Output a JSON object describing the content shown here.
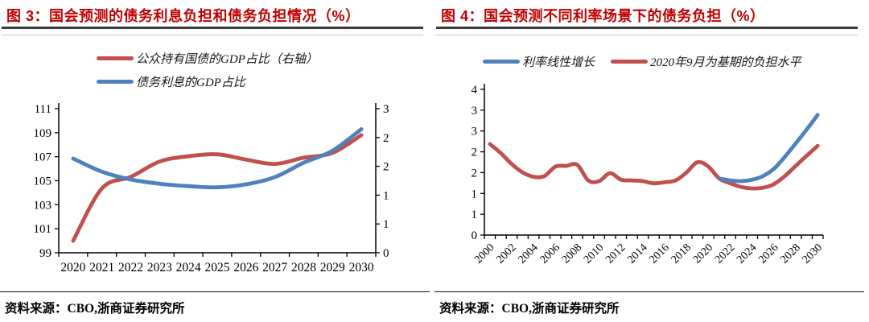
{
  "chart_data": [
    {
      "type": "line",
      "title": "图 3：国会预测的债务利息负担和债务负担情况（%）",
      "source": "资料来源：CBO,浙商证券研究所",
      "categories": [
        "2020",
        "2021",
        "2022",
        "2023",
        "2024",
        "2025",
        "2026",
        "2027",
        "2028",
        "2029",
        "2030"
      ],
      "left_axis": {
        "min": 99,
        "max": 111,
        "tick_labels": [
          "111",
          "109",
          "107",
          "105",
          "103",
          "101",
          "99"
        ]
      },
      "right_axis": {
        "min": 0,
        "max": 3,
        "tick_labels": [
          "3",
          "2",
          "2",
          "1",
          "1",
          "0"
        ]
      },
      "legend_position": "top-left-stacked",
      "grid": false,
      "series": [
        {
          "name": "公众持有国债的GDP占比（右轴）",
          "color": "#c0504d",
          "axis": "right",
          "z": 1,
          "values": [
            0.25,
            1.34,
            1.58,
            1.9,
            2.01,
            2.05,
            1.94,
            1.85,
            1.98,
            2.08,
            2.45
          ]
        },
        {
          "name": "债务利息的GDP占比",
          "color": "#4f81bd",
          "axis": "left",
          "z": 2,
          "values": [
            106.85,
            105.75,
            105.1,
            104.75,
            104.55,
            104.45,
            104.7,
            105.3,
            106.5,
            107.5,
            109.3
          ]
        }
      ]
    },
    {
      "type": "line",
      "title": "图 4：国会预测不同利率场景下的债务负担（%）",
      "source": "资料来源：CBO,浙商证券研究所",
      "categories": [
        "2000",
        "2001",
        "2002",
        "2003",
        "2004",
        "2005",
        "2006",
        "2007",
        "2008",
        "2009",
        "2010",
        "2011",
        "2012",
        "2013",
        "2014",
        "2015",
        "2016",
        "2017",
        "2018",
        "2019",
        "2020",
        "2021",
        "2022",
        "2023",
        "2024",
        "2025",
        "2026",
        "2027",
        "2028",
        "2029",
        "2030"
      ],
      "left_axis": {
        "min": 0,
        "max": 4,
        "tick_labels": [
          "4",
          "3",
          "3",
          "2",
          "2",
          "1",
          "1",
          "0"
        ]
      },
      "x_label_step": 2,
      "x_labels_rotated": true,
      "legend_position": "top-row",
      "grid": false,
      "series": [
        {
          "name": "利率线性增长",
          "color": "#4f81bd",
          "axis": "left",
          "z": 2,
          "start_index": 21,
          "values": [
            1.55,
            1.5,
            1.48,
            1.52,
            1.62,
            1.82,
            2.15,
            2.52,
            2.9,
            3.3
          ]
        },
        {
          "name": "2020年9月为基期的负担水平",
          "color": "#c0504d",
          "axis": "left",
          "z": 1,
          "values": [
            2.5,
            2.25,
            1.95,
            1.72,
            1.6,
            1.62,
            1.88,
            1.9,
            1.93,
            1.5,
            1.48,
            1.7,
            1.52,
            1.5,
            1.48,
            1.42,
            1.45,
            1.5,
            1.72,
            2.0,
            1.88,
            1.55,
            1.42,
            1.32,
            1.28,
            1.3,
            1.4,
            1.62,
            1.9,
            2.18,
            2.45
          ]
        }
      ]
    }
  ]
}
